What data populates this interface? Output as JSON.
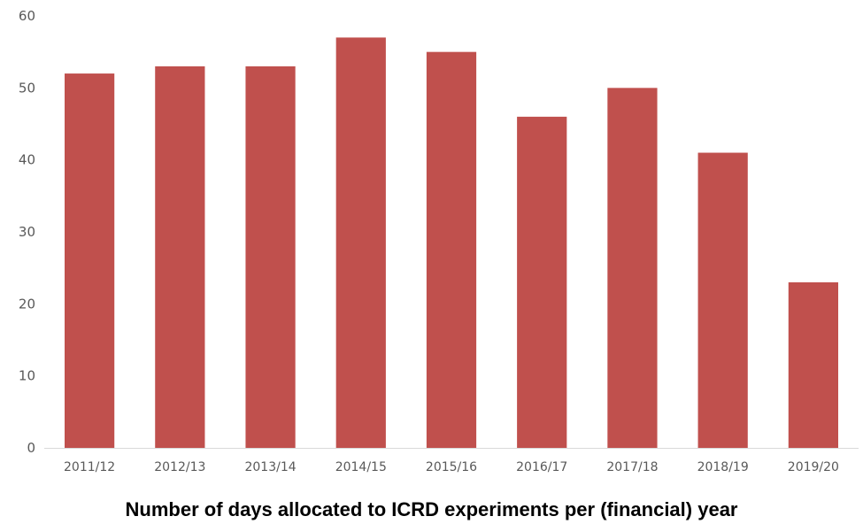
{
  "chart_data": {
    "type": "bar",
    "title": "",
    "xlabel": "Number of days allocated to ICRD experiments per (financial) year",
    "ylabel": "",
    "categories": [
      "2011/12",
      "2012/13",
      "2013/14",
      "2014/15",
      "2015/16",
      "2016/17",
      "2017/18",
      "2018/19",
      "2019/20"
    ],
    "values": [
      52,
      53,
      53,
      57,
      55,
      46,
      50,
      41,
      23
    ],
    "ylim": [
      0,
      60
    ],
    "yticks": [
      0,
      10,
      20,
      30,
      40,
      50,
      60
    ],
    "grid": false,
    "legend": "none",
    "colors": {
      "bar": "#c0504d",
      "axis": "#d9d9d9",
      "tick_text": "#595959"
    }
  }
}
